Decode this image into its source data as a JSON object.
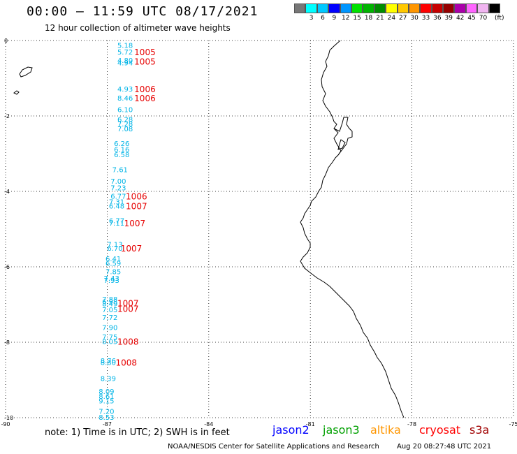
{
  "header": {
    "title": "00:00 — 11:59 UTC 08/17/2021",
    "subtitle": "12 hour collection of altimeter wave heights"
  },
  "scale": {
    "colors": [
      "#777777",
      "#00ffff",
      "#00c8ff",
      "#0000ff",
      "#0096ff",
      "#00e100",
      "#00b400",
      "#008c00",
      "#ffff00",
      "#ffc800",
      "#ff9600",
      "#ff0000",
      "#c80000",
      "#960000",
      "#aa00aa",
      "#ff64ff",
      "#f0b4f0",
      "#000000"
    ],
    "labels": [
      "3",
      "6",
      "9",
      "12",
      "15",
      "18",
      "21",
      "24",
      "27",
      "30",
      "33",
      "36",
      "39",
      "42",
      "45",
      "70"
    ],
    "unit": "(ft)"
  },
  "map": {
    "lon_range": [
      -90,
      -75
    ],
    "lat_range": [
      -10,
      0
    ],
    "lon_ticks": [
      "-90",
      "-87",
      "-84",
      "-81",
      "-78",
      "-75"
    ],
    "lat_ticks": [
      "0",
      "-2",
      "-4",
      "-6",
      "-8",
      "-10"
    ],
    "swh_points": [
      {
        "value": "5.18",
        "lat": -0.12,
        "lon": -86.7
      },
      {
        "value": "5.72",
        "lat": -0.3,
        "lon": -86.7
      },
      {
        "value": "4.80",
        "lat": -0.52,
        "lon": -86.7
      },
      {
        "value": "4.94",
        "lat": -0.58,
        "lon": -86.7
      },
      {
        "value": "4.93",
        "lat": -1.28,
        "lon": -86.7
      },
      {
        "value": "8.46",
        "lat": -1.52,
        "lon": -86.7
      },
      {
        "value": "6.10",
        "lat": -1.82,
        "lon": -86.7
      },
      {
        "value": "6.28",
        "lat": -2.08,
        "lon": -86.7
      },
      {
        "value": "7.28",
        "lat": -2.2,
        "lon": -86.7
      },
      {
        "value": "7.08",
        "lat": -2.33,
        "lon": -86.7
      },
      {
        "value": "6.26",
        "lat": -2.72,
        "lon": -86.8
      },
      {
        "value": "6.16",
        "lat": -2.88,
        "lon": -86.8
      },
      {
        "value": "6.58",
        "lat": -3.02,
        "lon": -86.8
      },
      {
        "value": "7.61",
        "lat": -3.42,
        "lon": -86.85
      },
      {
        "value": "7.00",
        "lat": -3.72,
        "lon": -86.9
      },
      {
        "value": "7.23",
        "lat": -3.9,
        "lon": -86.9
      },
      {
        "value": "6.77",
        "lat": -4.12,
        "lon": -86.9
      },
      {
        "value": "7.31",
        "lat": -4.27,
        "lon": -86.95
      },
      {
        "value": "6.48",
        "lat": -4.38,
        "lon": -86.95
      },
      {
        "value": "6.77",
        "lat": -4.77,
        "lon": -86.95
      },
      {
        "value": "7.11",
        "lat": -4.83,
        "lon": -86.95
      },
      {
        "value": "7.13",
        "lat": -5.4,
        "lon": -87.0
      },
      {
        "value": "6.70",
        "lat": -5.5,
        "lon": -87.0
      },
      {
        "value": "6.41",
        "lat": -5.78,
        "lon": -87.05
      },
      {
        "value": "6.59",
        "lat": -5.9,
        "lon": -87.05
      },
      {
        "value": "7.85",
        "lat": -6.12,
        "lon": -87.05
      },
      {
        "value": "7.43",
        "lat": -6.3,
        "lon": -87.1
      },
      {
        "value": "7.93",
        "lat": -6.35,
        "lon": -87.1
      },
      {
        "value": "7.88",
        "lat": -6.85,
        "lon": -87.15
      },
      {
        "value": "6.98",
        "lat": -6.92,
        "lon": -87.15
      },
      {
        "value": "8.49",
        "lat": -6.97,
        "lon": -87.15
      },
      {
        "value": "7.05",
        "lat": -7.13,
        "lon": -87.15
      },
      {
        "value": "7.72",
        "lat": -7.33,
        "lon": -87.15
      },
      {
        "value": "7.90",
        "lat": -7.6,
        "lon": -87.15
      },
      {
        "value": "7.75",
        "lat": -7.85,
        "lon": -87.15
      },
      {
        "value": "8.05",
        "lat": -7.97,
        "lon": -87.15
      },
      {
        "value": "8.76",
        "lat": -8.48,
        "lon": -87.2
      },
      {
        "value": "8.80",
        "lat": -8.53,
        "lon": -87.2
      },
      {
        "value": "8.39",
        "lat": -8.95,
        "lon": -87.2
      },
      {
        "value": "8.09",
        "lat": -9.3,
        "lon": -87.25
      },
      {
        "value": "8.61",
        "lat": -9.43,
        "lon": -87.25
      },
      {
        "value": "9.15",
        "lat": -9.55,
        "lon": -87.25
      },
      {
        "value": "7.20",
        "lat": -9.82,
        "lon": -87.25
      },
      {
        "value": "8.53",
        "lat": -9.98,
        "lon": -87.25
      }
    ],
    "pressure_points": [
      {
        "value": "1005",
        "lat": -0.3,
        "lon": -86.2
      },
      {
        "value": "1005",
        "lat": -0.55,
        "lon": -86.2
      },
      {
        "value": "1006",
        "lat": -1.28,
        "lon": -86.2
      },
      {
        "value": "1006",
        "lat": -1.52,
        "lon": -86.2
      },
      {
        "value": "1006",
        "lat": -4.12,
        "lon": -86.45
      },
      {
        "value": "1007",
        "lat": -4.38,
        "lon": -86.45
      },
      {
        "value": "1007",
        "lat": -4.83,
        "lon": -86.5
      },
      {
        "value": "1007",
        "lat": -5.5,
        "lon": -86.6
      },
      {
        "value": "1007",
        "lat": -6.95,
        "lon": -86.7
      },
      {
        "value": "1007",
        "lat": -7.1,
        "lon": -86.7
      },
      {
        "value": "1008",
        "lat": -7.97,
        "lon": -86.7
      },
      {
        "value": "1008",
        "lat": -8.53,
        "lon": -86.75
      }
    ]
  },
  "footer": {
    "note": "note: 1) Time is in UTC; 2) SWH is in feet",
    "satellites": [
      {
        "name": "jason2",
        "color": "#0000ff"
      },
      {
        "name": "jason3",
        "color": "#00a000"
      },
      {
        "name": "altika",
        "color": "#ff9600"
      },
      {
        "name": "cryosat",
        "color": "#ff0000"
      },
      {
        "name": "s3a",
        "color": "#a00000"
      }
    ],
    "credit": "NOAA/NESDIS Center for Satellite Applications and Research",
    "timestamp": "Aug 20 08:27:48 UTC 2021"
  }
}
